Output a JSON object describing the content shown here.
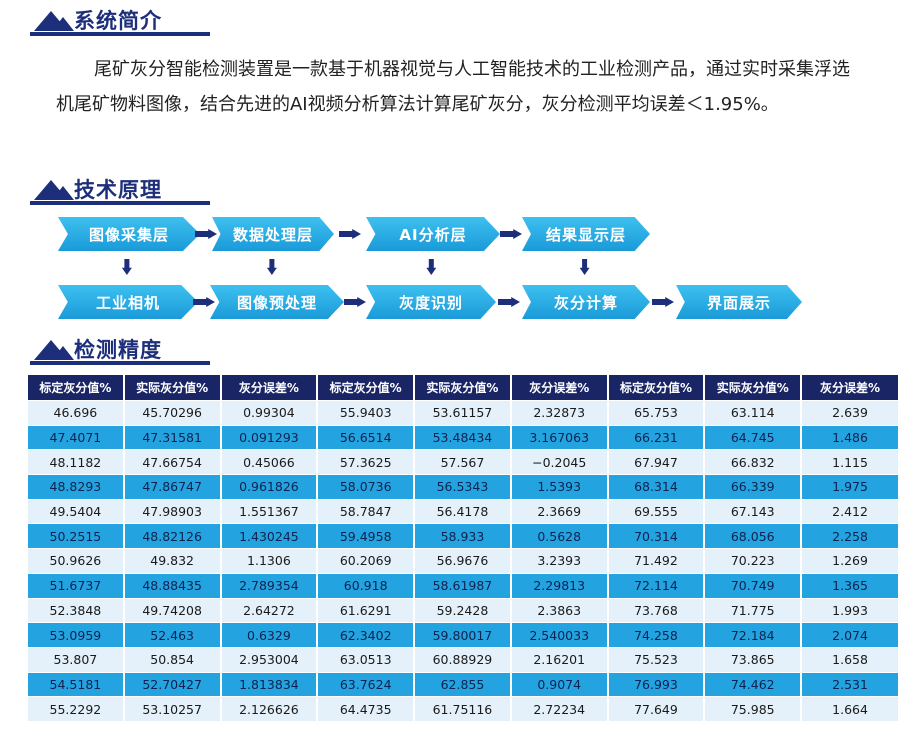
{
  "sections": {
    "intro": {
      "title": "系统简介",
      "text": "尾矿灰分智能检测装置是一款基于机器视觉与人工智能技术的工业检测产品，通过实时采集浮选机尾矿物料图像，结合先进的AI视频分析算法计算尾矿灰分，灰分检测平均误差＜1.95%。"
    },
    "principle": {
      "title": "技术原理",
      "top": [
        "图像采集层",
        "数据处理层",
        "AI分析层",
        "结果显示层"
      ],
      "bottom": [
        "工业相机",
        "图像预处理",
        "灰度识别",
        "灰分计算",
        "界面展示"
      ]
    },
    "accuracy": {
      "title": "检测精度"
    }
  },
  "table": {
    "header": [
      "标定灰分值%",
      "实际灰分值%",
      "灰分误差%",
      "标定灰分值%",
      "实际灰分值%",
      "灰分误差%",
      "标定灰分值%",
      "实际灰分值%",
      "灰分误差%"
    ],
    "rows": [
      [
        "46.696",
        "45.70296",
        "0.99304",
        "55.9403",
        "53.61157",
        "2.32873",
        "65.753",
        "63.114",
        "2.639"
      ],
      [
        "47.4071",
        "47.31581",
        "0.091293",
        "56.6514",
        "53.48434",
        "3.167063",
        "66.231",
        "64.745",
        "1.486"
      ],
      [
        "48.1182",
        "47.66754",
        "0.45066",
        "57.3625",
        "57.567",
        "−0.2045",
        "67.947",
        "66.832",
        "1.115"
      ],
      [
        "48.8293",
        "47.86747",
        "0.961826",
        "58.0736",
        "56.5343",
        "1.5393",
        "68.314",
        "66.339",
        "1.975"
      ],
      [
        "49.5404",
        "47.98903",
        "1.551367",
        "58.7847",
        "56.4178",
        "2.3669",
        "69.555",
        "67.143",
        "2.412"
      ],
      [
        "50.2515",
        "48.82126",
        "1.430245",
        "59.4958",
        "58.933",
        "0.5628",
        "70.314",
        "68.056",
        "2.258"
      ],
      [
        "50.9626",
        "49.832",
        "1.1306",
        "60.2069",
        "56.9676",
        "3.2393",
        "71.492",
        "70.223",
        "1.269"
      ],
      [
        "51.6737",
        "48.88435",
        "2.789354",
        "60.918",
        "58.61987",
        "2.29813",
        "72.114",
        "70.749",
        "1.365"
      ],
      [
        "52.3848",
        "49.74208",
        "2.64272",
        "61.6291",
        "59.2428",
        "2.3863",
        "73.768",
        "71.775",
        "1.993"
      ],
      [
        "53.0959",
        "52.463",
        "0.6329",
        "62.3402",
        "59.80017",
        "2.540033",
        "74.258",
        "72.184",
        "2.074"
      ],
      [
        "53.807",
        "50.854",
        "2.953004",
        "63.0513",
        "60.88929",
        "2.16201",
        "75.523",
        "73.865",
        "1.658"
      ],
      [
        "54.5181",
        "52.70427",
        "1.813834",
        "63.7624",
        "62.855",
        "0.9074",
        "76.993",
        "74.462",
        "2.531"
      ],
      [
        "55.2292",
        "53.10257",
        "2.126626",
        "64.4735",
        "61.75116",
        "2.72234",
        "77.649",
        "75.985",
        "1.664"
      ]
    ]
  }
}
